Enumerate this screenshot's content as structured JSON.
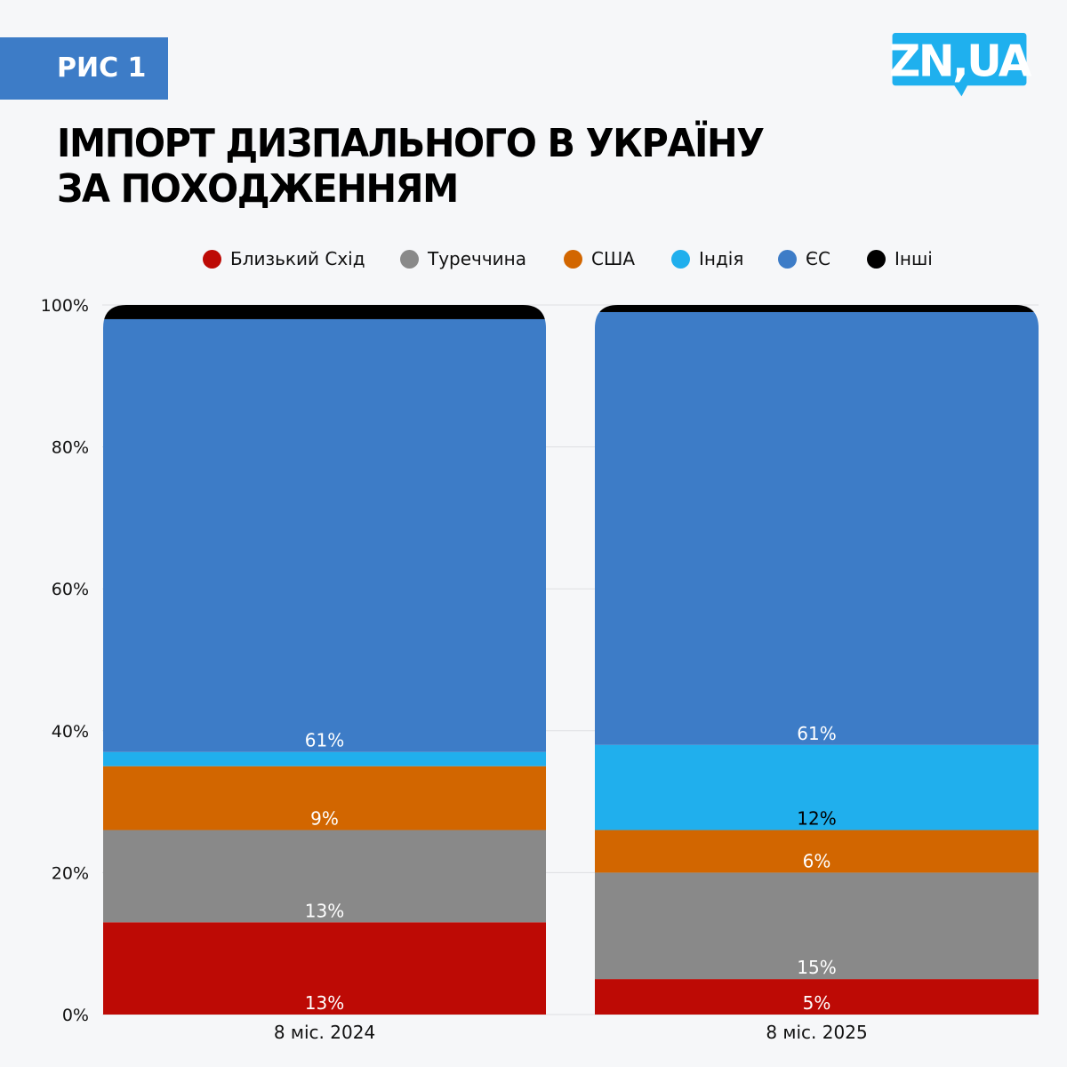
{
  "header": {
    "figure_tag": "РИС 1",
    "title_lines": [
      "ІМПОРТ ДИЗПАЛЬНОГО В УКРАЇНУ",
      "ЗА ПОХОДЖЕННЯМ"
    ],
    "logo_text": "ZN,UA",
    "logo_color": "#1fb0ee",
    "tag_color": "#3d7cc7"
  },
  "chart_data": {
    "type": "bar",
    "stacked": true,
    "orientation": "vertical",
    "title": "ІМПОРТ ДИЗПАЛЬНОГО В УКРАЇНУ ЗА ПОХОДЖЕННЯМ",
    "xlabel": "",
    "ylabel": "",
    "categories": [
      "8 міс. 2024",
      "8 міс. 2025"
    ],
    "ylim": [
      0,
      100
    ],
    "yticks": [
      0,
      20,
      40,
      60,
      80,
      100
    ],
    "ytick_labels": [
      "0%",
      "20%",
      "40%",
      "60%",
      "80%",
      "100%"
    ],
    "grid": true,
    "legend_position": "top",
    "series": [
      {
        "name": "Близький Схід",
        "color": "#bd0a05",
        "values": [
          13,
          5
        ],
        "labels": [
          "13%",
          "5%"
        ],
        "label_color": "#ffffff"
      },
      {
        "name": "Туреччина",
        "color": "#898989",
        "values": [
          13,
          15
        ],
        "labels": [
          "13%",
          "15%"
        ],
        "label_color": "#ffffff"
      },
      {
        "name": "США",
        "color": "#d26600",
        "values": [
          9,
          6
        ],
        "labels": [
          "9%",
          "6%"
        ],
        "label_color": "#ffffff"
      },
      {
        "name": "Індія",
        "color": "#20afed",
        "values": [
          2,
          12
        ],
        "labels": [
          "",
          "12%"
        ],
        "label_color": "#000000"
      },
      {
        "name": "ЄС",
        "color": "#3d7cc7",
        "values": [
          61,
          61
        ],
        "labels": [
          "61%",
          "61%"
        ],
        "label_color": "#ffffff"
      },
      {
        "name": "Інші",
        "color": "#000000",
        "values": [
          2,
          1
        ],
        "labels": [
          "",
          ""
        ],
        "label_color": "#ffffff"
      }
    ]
  }
}
